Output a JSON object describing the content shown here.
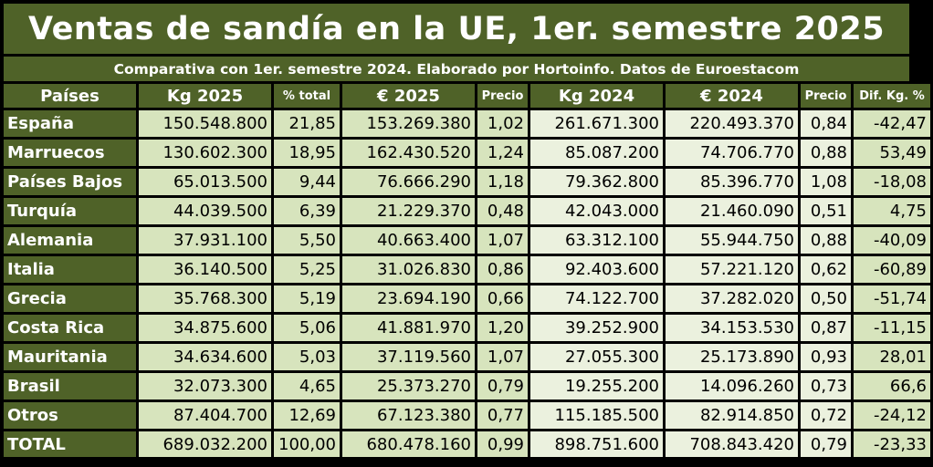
{
  "title": "Ventas de sandía en la UE, 1er. semestre 2025",
  "subtitle": "Comparativa con 1er. semestre 2024. Elaborado por Hortoinfo. Datos de Euroestacom",
  "colors": {
    "header_bg": "#4f6228",
    "cell_2025": "#d7e4bd",
    "cell_2024": "#ebf1de",
    "header_text": "#ffffff"
  },
  "columns": [
    "Países",
    "Kg 2025",
    "% total",
    "€ 2025",
    "Precio",
    "Kg 2024",
    "€ 2024",
    "Precio",
    "Dif. Kg. %"
  ],
  "rows": [
    {
      "country": "España",
      "kg2025": "150.548.800",
      "pct": "21,85",
      "eur2025": "153.269.380",
      "p2025": "1,02",
      "kg2024": "261.671.300",
      "eur2024": "220.493.370",
      "p2024": "0,84",
      "dif": "-42,47"
    },
    {
      "country": "Marruecos",
      "kg2025": "130.602.300",
      "pct": "18,95",
      "eur2025": "162.430.520",
      "p2025": "1,24",
      "kg2024": "85.087.200",
      "eur2024": "74.706.770",
      "p2024": "0,88",
      "dif": "53,49"
    },
    {
      "country": "Países Bajos",
      "kg2025": "65.013.500",
      "pct": "9,44",
      "eur2025": "76.666.290",
      "p2025": "1,18",
      "kg2024": "79.362.800",
      "eur2024": "85.396.770",
      "p2024": "1,08",
      "dif": "-18,08"
    },
    {
      "country": "Turquía",
      "kg2025": "44.039.500",
      "pct": "6,39",
      "eur2025": "21.229.370",
      "p2025": "0,48",
      "kg2024": "42.043.000",
      "eur2024": "21.460.090",
      "p2024": "0,51",
      "dif": "4,75"
    },
    {
      "country": "Alemania",
      "kg2025": "37.931.100",
      "pct": "5,50",
      "eur2025": "40.663.400",
      "p2025": "1,07",
      "kg2024": "63.312.100",
      "eur2024": "55.944.750",
      "p2024": "0,88",
      "dif": "-40,09"
    },
    {
      "country": "Italia",
      "kg2025": "36.140.500",
      "pct": "5,25",
      "eur2025": "31.026.830",
      "p2025": "0,86",
      "kg2024": "92.403.600",
      "eur2024": "57.221.120",
      "p2024": "0,62",
      "dif": "-60,89"
    },
    {
      "country": "Grecia",
      "kg2025": "35.768.300",
      "pct": "5,19",
      "eur2025": "23.694.190",
      "p2025": "0,66",
      "kg2024": "74.122.700",
      "eur2024": "37.282.020",
      "p2024": "0,50",
      "dif": "-51,74"
    },
    {
      "country": "Costa Rica",
      "kg2025": "34.875.600",
      "pct": "5,06",
      "eur2025": "41.881.970",
      "p2025": "1,20",
      "kg2024": "39.252.900",
      "eur2024": "34.153.530",
      "p2024": "0,87",
      "dif": "-11,15"
    },
    {
      "country": "Mauritania",
      "kg2025": "34.634.600",
      "pct": "5,03",
      "eur2025": "37.119.560",
      "p2025": "1,07",
      "kg2024": "27.055.300",
      "eur2024": "25.173.890",
      "p2024": "0,93",
      "dif": "28,01"
    },
    {
      "country": "Brasil",
      "kg2025": "32.073.300",
      "pct": "4,65",
      "eur2025": "25.373.270",
      "p2025": "0,79",
      "kg2024": "19.255.200",
      "eur2024": "14.096.260",
      "p2024": "0,73",
      "dif": "66,6"
    },
    {
      "country": "Otros",
      "kg2025": "87.404.700",
      "pct": "12,69",
      "eur2025": "67.123.380",
      "p2025": "0,77",
      "kg2024": "115.185.500",
      "eur2024": "82.914.850",
      "p2024": "0,72",
      "dif": "-24,12"
    },
    {
      "country": "TOTAL",
      "kg2025": "689.032.200",
      "pct": "100,00",
      "eur2025": "680.478.160",
      "p2025": "0,99",
      "kg2024": "898.751.600",
      "eur2024": "708.843.420",
      "p2024": "0,79",
      "dif": "-23,33"
    }
  ]
}
